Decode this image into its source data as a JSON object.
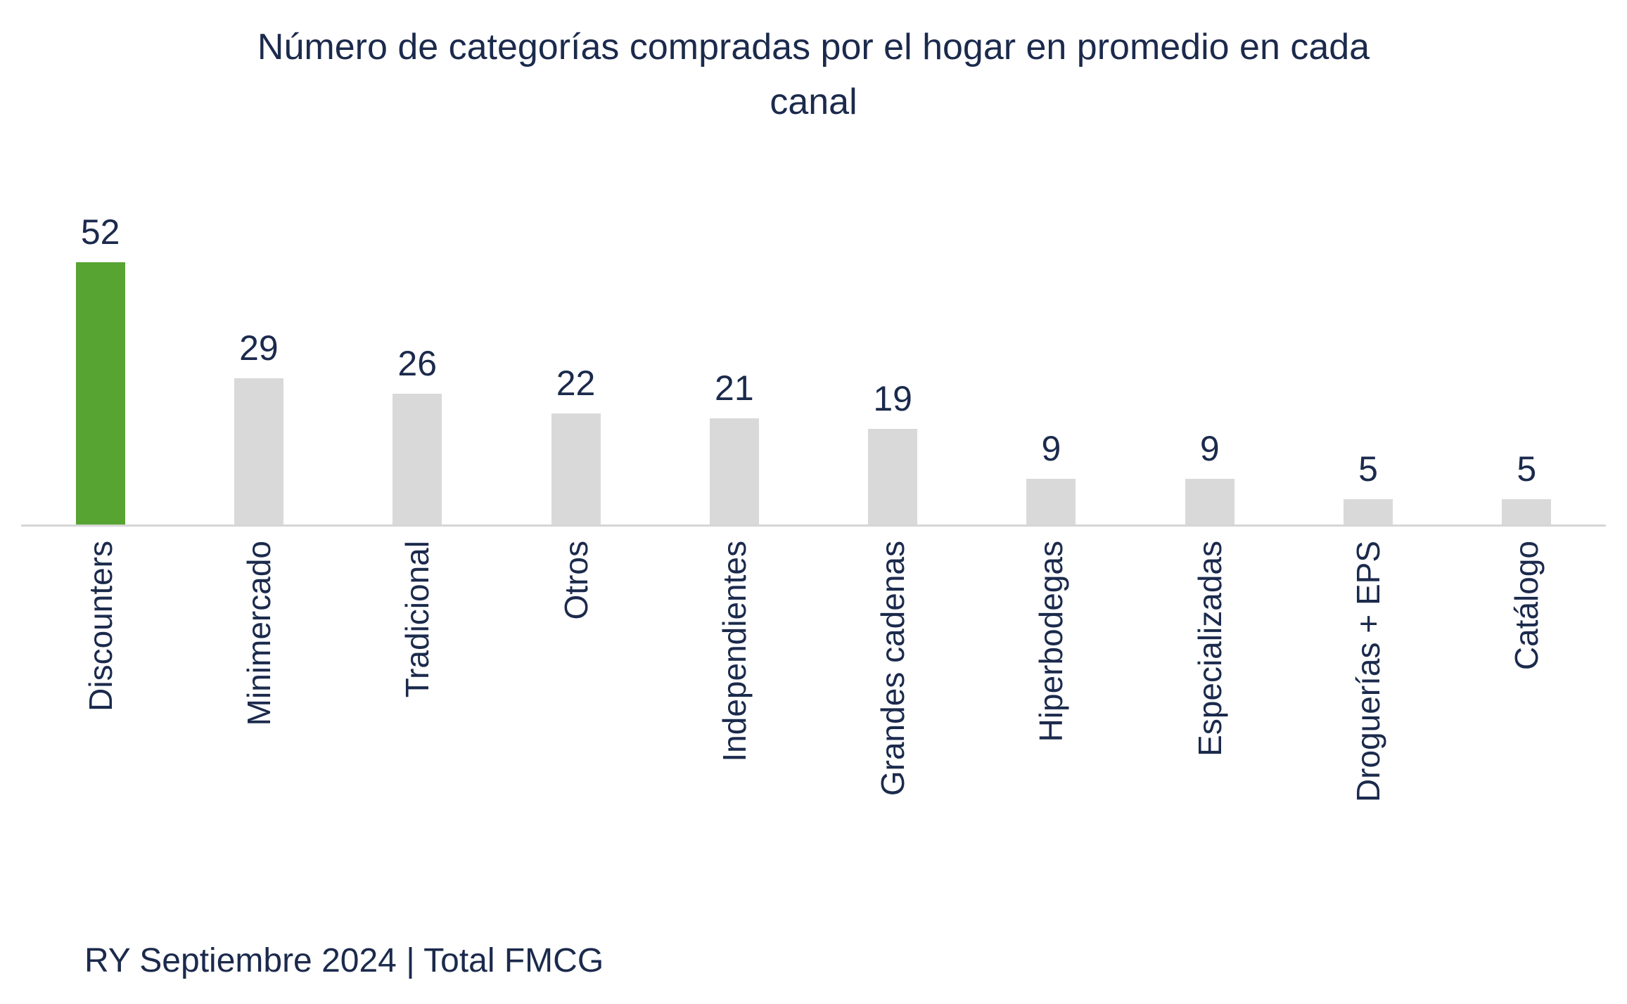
{
  "chart_data": {
    "type": "bar",
    "title": "Número de categorías compradas por el hogar en promedio en cada canal",
    "title_lines": [
      "Número de categorías compradas por el hogar en promedio en cada",
      "canal"
    ],
    "categories": [
      "Discounters",
      "Minimercado",
      "Tradicional",
      "Otros",
      "Independientes",
      "Grandes cadenas",
      "Hiperbodegas",
      "Especializadas",
      "Droguerías + EPS",
      "Catálogo"
    ],
    "values": [
      52,
      29,
      26,
      22,
      21,
      19,
      9,
      9,
      5,
      5
    ],
    "highlighted_category": "Discounters",
    "highlight_color": "#57a433",
    "bar_color": "#d9d9d9",
    "text_color": "#1b2a4c",
    "xlabel": "",
    "ylabel": "",
    "ylim": [
      0,
      56
    ],
    "grid": false,
    "legend": false,
    "value_labels": true
  },
  "footer": {
    "note": "RY Septiembre 2024 | Total FMCG"
  }
}
